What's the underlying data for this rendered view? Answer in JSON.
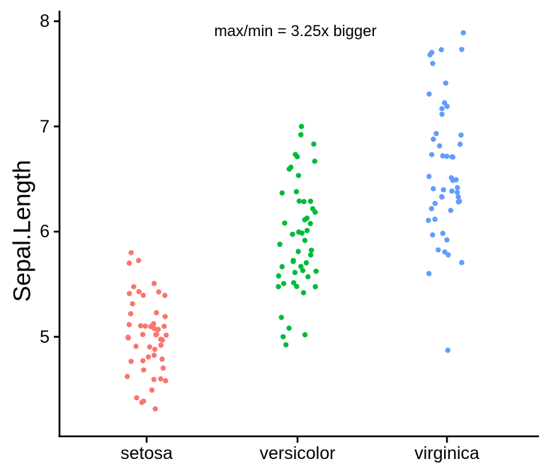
{
  "chart_data": {
    "type": "scatter",
    "variant": "jittered-strip-plot",
    "title": "",
    "annotation": "max/min = 3.25x bigger",
    "xlabel": "",
    "ylabel": "Sepal.Length",
    "categories": [
      "setosa",
      "versicolor",
      "virginica"
    ],
    "yticks": [
      "5",
      "6",
      "7",
      "8"
    ],
    "ylim": [
      4.05,
      8.1
    ],
    "grid": false,
    "legend": "none",
    "axis_color": "#000000",
    "series": [
      {
        "name": "setosa",
        "color": "#F8766D",
        "values": [
          5.1,
          4.9,
          4.7,
          4.6,
          5.0,
          5.4,
          4.6,
          5.0,
          4.4,
          4.9,
          5.4,
          4.8,
          4.8,
          4.3,
          5.8,
          5.7,
          5.4,
          5.1,
          5.7,
          5.1,
          5.4,
          5.1,
          4.6,
          5.1,
          4.8,
          5.0,
          5.0,
          5.2,
          5.2,
          4.7,
          4.8,
          5.4,
          5.2,
          5.5,
          4.9,
          5.0,
          5.5,
          4.9,
          4.4,
          5.1,
          5.0,
          4.5,
          4.4,
          5.0,
          5.1,
          4.8,
          5.1,
          4.6,
          5.3,
          5.0
        ]
      },
      {
        "name": "versicolor",
        "color": "#00BA38",
        "values": [
          7.0,
          6.4,
          6.9,
          5.5,
          6.5,
          5.7,
          6.3,
          4.9,
          6.6,
          5.2,
          5.0,
          5.9,
          6.0,
          6.1,
          5.6,
          6.7,
          5.6,
          5.8,
          6.2,
          5.6,
          5.9,
          6.1,
          6.3,
          6.1,
          6.4,
          6.6,
          6.8,
          6.7,
          6.0,
          5.7,
          5.5,
          5.5,
          5.8,
          6.0,
          5.4,
          6.0,
          6.7,
          6.3,
          5.6,
          5.5,
          5.5,
          6.1,
          5.8,
          5.0,
          5.6,
          5.7,
          5.7,
          6.2,
          5.1,
          5.7
        ]
      },
      {
        "name": "virginica",
        "color": "#619CFF",
        "values": [
          6.3,
          5.8,
          7.1,
          6.3,
          6.5,
          7.6,
          4.9,
          7.3,
          6.7,
          7.2,
          6.5,
          6.4,
          6.8,
          5.7,
          5.8,
          6.4,
          6.5,
          7.7,
          7.7,
          6.0,
          6.9,
          5.6,
          7.7,
          6.3,
          6.7,
          7.2,
          6.2,
          6.1,
          6.4,
          7.2,
          7.4,
          7.9,
          6.4,
          6.3,
          6.1,
          7.7,
          6.3,
          6.4,
          6.0,
          6.9,
          6.7,
          6.9,
          5.8,
          6.8,
          6.7,
          6.7,
          6.3,
          6.5,
          6.2,
          5.9
        ]
      }
    ]
  }
}
